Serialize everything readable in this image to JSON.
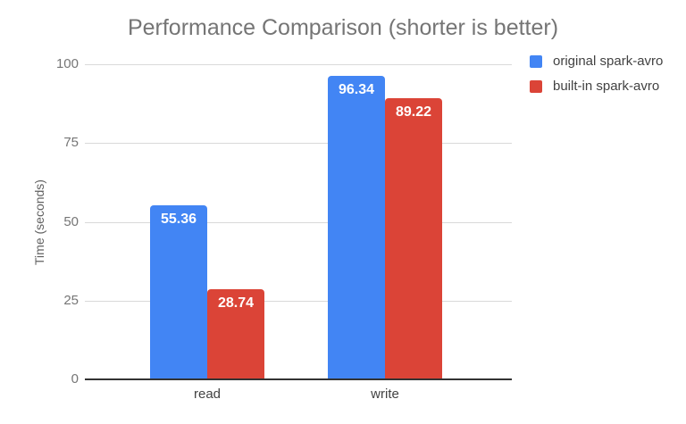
{
  "chart_data": {
    "type": "bar",
    "title": "Performance Comparison (shorter is better)",
    "xlabel": "",
    "ylabel": "Time (seconds)",
    "categories": [
      "read",
      "write"
    ],
    "series": [
      {
        "name": "original spark-avro",
        "color": "#4285F4",
        "values": [
          55.36,
          96.34
        ]
      },
      {
        "name": "built-in spark-avro",
        "color": "#DB4437",
        "values": [
          28.74,
          89.22
        ]
      }
    ],
    "bar_value_labels": [
      "55.36",
      "28.74",
      "96.34",
      "89.22"
    ],
    "ylim": [
      0,
      100
    ],
    "yticks": [
      0,
      25,
      50,
      75,
      100
    ],
    "grid": true,
    "legend_position": "right",
    "colors": {
      "background": "#FFFFFF",
      "title_text": "#757575",
      "axis_title_text": "#616161",
      "y_tick_text": "#757575",
      "category_text": "#424242",
      "legend_text": "#424242",
      "gridline": "#D9D9D9",
      "axis_line": "#333333",
      "bar_label_text": "#FFFFFF"
    }
  }
}
